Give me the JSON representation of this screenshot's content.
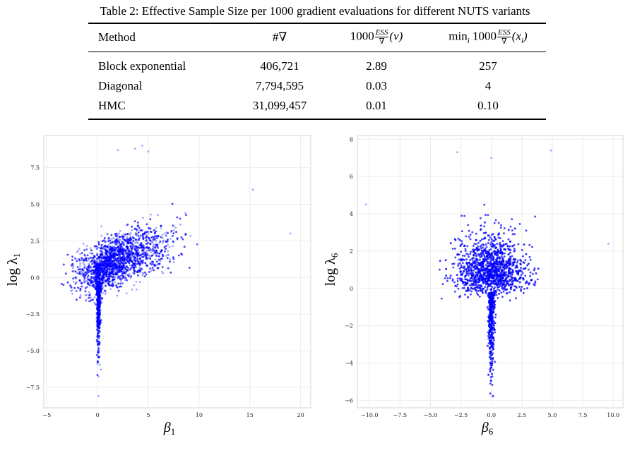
{
  "caption": "Table 2: Effective Sample Size per 1000 gradient evaluations for different NUTS variants",
  "table": {
    "headers": {
      "method": "Method",
      "grads": "#∇",
      "ess_v_prefix": "1000",
      "ess_v_num": "ESS",
      "ess_v_den": "∇",
      "ess_v_suffix": "(v)",
      "ess_min_prefix": "min",
      "ess_min_sub": "i",
      "ess_min_1000": " 1000",
      "ess_min_num": "ESS",
      "ess_min_den": "∇",
      "ess_min_suffix": "(x",
      "ess_min_suffix_sub": "i",
      "ess_min_close": ")"
    },
    "rows": [
      {
        "method": "Block exponential",
        "grads": "406,721",
        "ess_v": "2.89",
        "ess_min": "257"
      },
      {
        "method": "Diagonal",
        "grads": "7,794,595",
        "ess_v": "0.03",
        "ess_min": "4"
      },
      {
        "method": "HMC",
        "grads": "31,099,457",
        "ess_v": "0.01",
        "ess_min": "0.10"
      }
    ]
  },
  "colors": {
    "points": "#0000ff",
    "grid": "#ececec",
    "frame": "#cccccc"
  },
  "chart_data": [
    {
      "type": "scatter",
      "xlabel": "β",
      "xlabel_sub": "1",
      "ylabel": "log λ",
      "ylabel_sub": "1",
      "xlim": [
        -5.3,
        21
      ],
      "ylim": [
        -8.9,
        9.7
      ],
      "xticks": [
        -5,
        0,
        5,
        10,
        15,
        20
      ],
      "yticks": [
        -7.5,
        -5.0,
        -2.5,
        0.0,
        2.5,
        5.0,
        7.5
      ],
      "xtick_labels": [
        "−5",
        "0",
        "5",
        "10",
        "15",
        "20"
      ],
      "ytick_labels": [
        "−7.5",
        "−5.0",
        "−2.5",
        "0.0",
        "2.5",
        "5.0",
        "7.5"
      ],
      "grid": true,
      "distribution": "dense funnel: body around beta 0–10, logλ −1 to 5; narrow spike at beta≈0 down to −8",
      "notable_points": [
        [
          3.7,
          8.8
        ],
        [
          4.4,
          9.0
        ],
        [
          5.0,
          8.6
        ],
        [
          2.0,
          8.7
        ],
        [
          0.1,
          -8.1
        ],
        [
          15.3,
          6.0
        ],
        [
          19.0,
          3.0
        ]
      ]
    },
    {
      "type": "scatter",
      "xlabel": "β",
      "xlabel_sub": "6",
      "ylabel": "log λ",
      "ylabel_sub": "6",
      "xlim": [
        -11,
        10.8
      ],
      "ylim": [
        -6.4,
        8.2
      ],
      "xticks": [
        -10.0,
        -7.5,
        -5.0,
        -2.5,
        0.0,
        2.5,
        5.0,
        7.5,
        10.0
      ],
      "yticks": [
        -6,
        -4,
        -2,
        0,
        2,
        4,
        6,
        8
      ],
      "xtick_labels": [
        "−10.0",
        "−7.5",
        "−5.0",
        "−2.5",
        "0.0",
        "2.5",
        "5.0",
        "7.5",
        "10.0"
      ],
      "ytick_labels": [
        "−6",
        "−4",
        "−2",
        "0",
        "2",
        "4",
        "6",
        "8"
      ],
      "grid": true,
      "distribution": "symmetric funnel centered at beta 0: wide body logλ 0–4, spike at beta≈0 down to −6",
      "notable_points": [
        [
          -2.8,
          7.3
        ],
        [
          0.0,
          7.0
        ],
        [
          4.9,
          7.4
        ],
        [
          -10.3,
          4.5
        ],
        [
          9.6,
          2.4
        ],
        [
          0.1,
          -5.8
        ]
      ]
    }
  ]
}
